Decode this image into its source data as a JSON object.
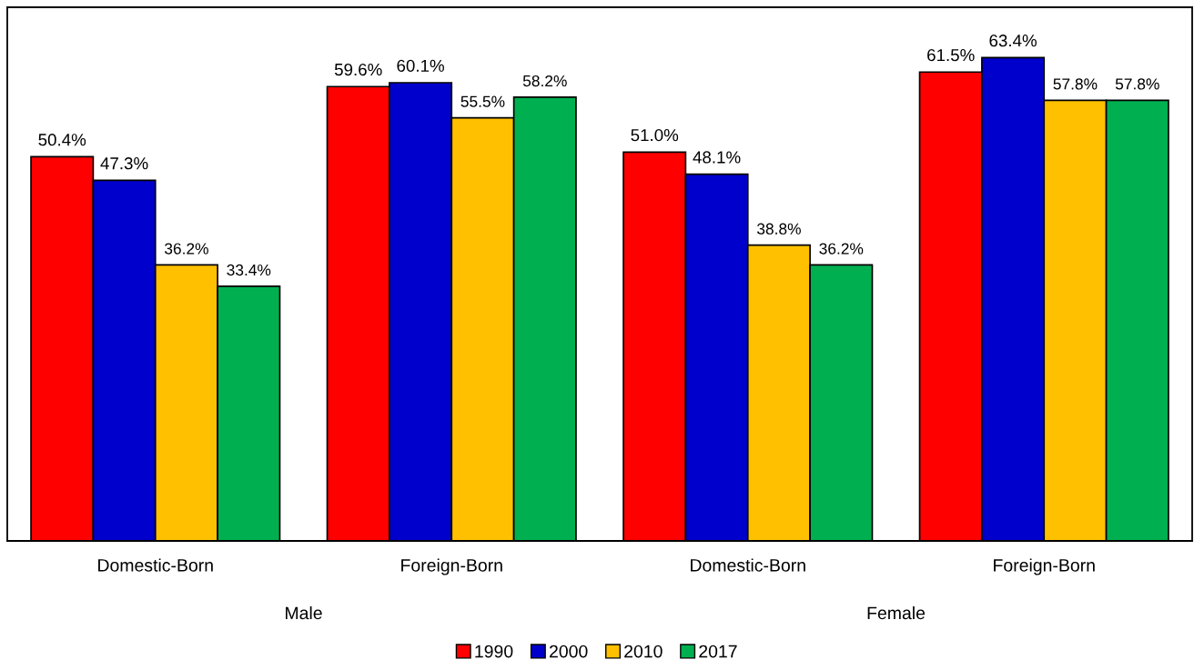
{
  "chart_data": {
    "type": "bar",
    "categories": [
      "Domestic-Born",
      "Foreign-Born",
      "Domestic-Born",
      "Foreign-Born"
    ],
    "series": [
      {
        "name": "1990",
        "color": "#ff0000",
        "values": [
          50.4,
          59.6,
          51.0,
          61.5
        ],
        "value_labels": [
          "50.4%",
          "59.6%",
          "51.0%",
          "61.5%"
        ]
      },
      {
        "name": "2000",
        "color": "#0000cc",
        "values": [
          47.3,
          60.1,
          48.1,
          63.4
        ],
        "value_labels": [
          "47.3%",
          "60.1%",
          "48.1%",
          "63.4%"
        ]
      },
      {
        "name": "2010",
        "color": "#ffc000",
        "values": [
          36.2,
          55.5,
          38.8,
          57.8
        ],
        "value_labels": [
          "36.2%",
          "55.5%",
          "38.8%",
          "57.8%"
        ]
      },
      {
        "name": "2017",
        "color": "#00b050",
        "values": [
          33.4,
          58.2,
          36.2,
          57.8
        ],
        "value_labels": [
          "33.4%",
          "58.2%",
          "36.2%",
          "57.8%"
        ]
      }
    ],
    "annotations": [
      "Male",
      "Female"
    ],
    "ylim": [
      0,
      70
    ],
    "tick_labels": "x",
    "grid": false,
    "legend": "bottom"
  }
}
